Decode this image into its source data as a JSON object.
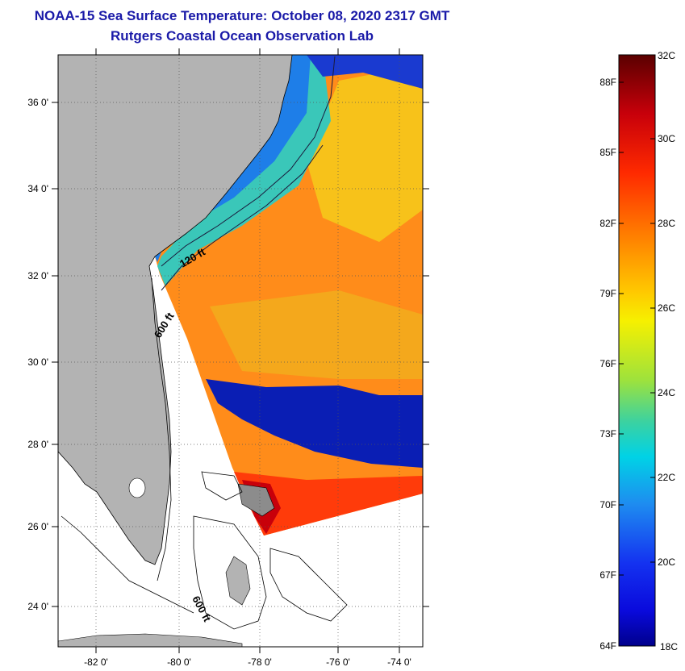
{
  "header": {
    "title": "NOAA-15 Sea Surface Temperature:  October 08, 2020 2317 GMT",
    "subtitle": "Rutgers Coastal Ocean Observation Lab"
  },
  "map": {
    "lat_labels": [
      "36 0'",
      "34 0'",
      "32 0'",
      "30 0'",
      "28 0'",
      "26 0'",
      "24 0'"
    ],
    "lon_labels": [
      "-82 0'",
      "-80 0'",
      "-78 0'",
      "-76 0'",
      "-74 0'"
    ],
    "contours": {
      "shelf_120": "120 ft",
      "shelf_600_north": "600 ft",
      "shelf_600_south": "600 ft"
    },
    "colors": {
      "land": "#b3b3b3",
      "ocean_warm": "#ff8c1a",
      "ocean_hot": "#ff3b0a",
      "ocean_cool": "#0a1eb4",
      "shelf_cool": "#1e7ee8",
      "frame": "#000000"
    }
  },
  "colorbar": {
    "fahrenheit": [
      "88F",
      "85F",
      "82F",
      "79F",
      "76F",
      "73F",
      "70F",
      "67F",
      "64F"
    ],
    "celsius": [
      "32C",
      "30C",
      "28C",
      "26C",
      "24C",
      "22C",
      "20C",
      "18C"
    ]
  }
}
